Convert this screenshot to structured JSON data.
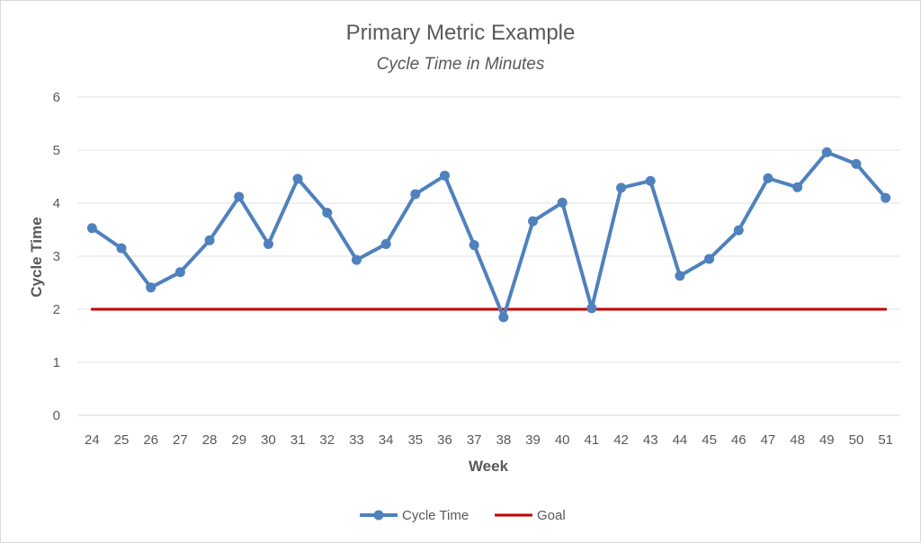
{
  "chart_data": {
    "type": "line",
    "title": "Primary Metric Example",
    "subtitle": "Cycle Time in Minutes",
    "xlabel": "Week",
    "ylabel": "Cycle Time",
    "ylim": [
      0,
      6
    ],
    "yticks": [
      "0",
      "1",
      "2",
      "3",
      "4",
      "5",
      "6"
    ],
    "grid": true,
    "legend_position": "bottom",
    "categories": [
      "24",
      "25",
      "26",
      "27",
      "28",
      "29",
      "30",
      "31",
      "32",
      "33",
      "34",
      "35",
      "36",
      "37",
      "38",
      "39",
      "40",
      "41",
      "42",
      "43",
      "44",
      "45",
      "46",
      "47",
      "48",
      "49",
      "50",
      "51"
    ],
    "series": [
      {
        "name": "Cycle Time",
        "color": "#4f81bd",
        "marker": "circle",
        "values": [
          3.53,
          3.15,
          2.41,
          2.7,
          3.3,
          4.12,
          3.23,
          4.46,
          3.82,
          2.93,
          3.23,
          4.17,
          4.52,
          3.21,
          1.85,
          3.66,
          4.01,
          2.02,
          4.29,
          4.42,
          2.63,
          2.95,
          3.49,
          4.47,
          4.3,
          4.96,
          4.74,
          4.1
        ]
      },
      {
        "name": "Goal",
        "color": "#c00000",
        "marker": "none",
        "values": [
          2,
          2,
          2,
          2,
          2,
          2,
          2,
          2,
          2,
          2,
          2,
          2,
          2,
          2,
          2,
          2,
          2,
          2,
          2,
          2,
          2,
          2,
          2,
          2,
          2,
          2,
          2,
          2
        ]
      }
    ]
  }
}
